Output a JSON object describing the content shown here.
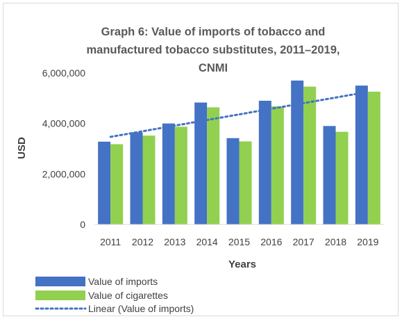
{
  "chart_data": {
    "type": "bar",
    "title_lines": [
      "Graph 6: Value of imports of tobacco and",
      "manufactured tobacco substitutes, 2011–2019,",
      "CNMI"
    ],
    "xlabel": "Years",
    "ylabel": "USD",
    "ylim": [
      0,
      6000000
    ],
    "yticks": [
      0,
      2000000,
      4000000,
      6000000
    ],
    "ytick_labels": [
      "0",
      "2,000,000",
      "4,000,000",
      "6,000,000"
    ],
    "categories": [
      "2011",
      "2012",
      "2013",
      "2014",
      "2015",
      "2016",
      "2017",
      "2018",
      "2019"
    ],
    "series": [
      {
        "name": "Value of imports",
        "color": "#4472c4",
        "values": [
          3280000,
          3650000,
          4000000,
          4830000,
          3420000,
          4900000,
          5700000,
          3900000,
          5500000
        ]
      },
      {
        "name": "Value of cigarettes",
        "color": "#92d050",
        "values": [
          3180000,
          3520000,
          3870000,
          4640000,
          3290000,
          4680000,
          5460000,
          3670000,
          5260000
        ]
      }
    ],
    "trendline": {
      "name": "Linear (Value of imports)",
      "color": "#4472c4",
      "style": "dotted",
      "start": 3470000,
      "end": 5250000
    },
    "grid": false,
    "legend_position": "bottom-left"
  }
}
